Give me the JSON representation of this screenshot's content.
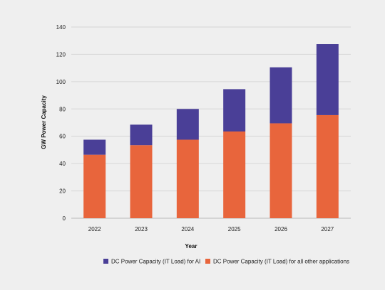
{
  "chart_data": {
    "type": "bar",
    "stacked": true,
    "categories": [
      "2022",
      "2023",
      "2024",
      "2025",
      "2026",
      "2027"
    ],
    "series": [
      {
        "name": "DC Power Capacity (IT Load) for all other applications",
        "color": "#e8653c",
        "values": [
          46.5,
          53.5,
          57.5,
          63.5,
          69.5,
          75.5
        ]
      },
      {
        "name": "DC Power Capacity (IT Load) for AI",
        "color": "#4a3f97",
        "values": [
          11,
          15,
          22.5,
          31,
          41,
          52
        ]
      }
    ],
    "title": "",
    "xlabel": "Year",
    "ylabel": "GW Power Capacity",
    "ylim": [
      0,
      140
    ],
    "yticks": [
      "0",
      "20",
      "40",
      "60",
      "80",
      "100",
      "120",
      "140"
    ],
    "grid": true,
    "legend_position": "bottom",
    "legend_order": [
      1,
      0
    ]
  }
}
